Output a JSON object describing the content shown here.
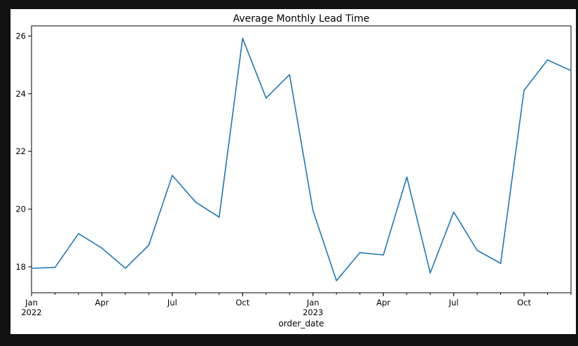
{
  "chart_data": {
    "type": "line",
    "title": "Average Monthly Lead Time",
    "xlabel": "order_date",
    "ylabel": "",
    "x": [
      "2022-01",
      "2022-02",
      "2022-03",
      "2022-04",
      "2022-05",
      "2022-06",
      "2022-07",
      "2022-08",
      "2022-09",
      "2022-10",
      "2022-11",
      "2022-12",
      "2023-01",
      "2023-02",
      "2023-03",
      "2023-04",
      "2023-05",
      "2023-06",
      "2023-07",
      "2023-08",
      "2023-09",
      "2023-10",
      "2023-11",
      "2023-12"
    ],
    "series": [
      {
        "values": [
          17.95,
          17.98,
          19.15,
          18.65,
          17.95,
          18.75,
          21.17,
          20.24,
          19.72,
          25.92,
          23.85,
          24.66,
          19.95,
          17.52,
          18.49,
          18.41,
          21.11,
          17.79,
          19.9,
          18.57,
          18.12,
          24.12,
          25.17,
          24.8
        ]
      }
    ],
    "ylim": [
      17.1,
      26.35
    ],
    "yticks": [
      18,
      20,
      22,
      24,
      26
    ],
    "xticks": [
      {
        "x": "2022-01",
        "label": "Jan",
        "sublabel": "2022"
      },
      {
        "x": "2022-04",
        "label": "Apr",
        "sublabel": ""
      },
      {
        "x": "2022-07",
        "label": "Jul",
        "sublabel": ""
      },
      {
        "x": "2022-10",
        "label": "Oct",
        "sublabel": ""
      },
      {
        "x": "2023-01",
        "label": "Jan",
        "sublabel": "2023"
      },
      {
        "x": "2023-04",
        "label": "Apr",
        "sublabel": ""
      },
      {
        "x": "2023-07",
        "label": "Jul",
        "sublabel": ""
      },
      {
        "x": "2023-10",
        "label": "Oct",
        "sublabel": ""
      }
    ],
    "line_color": "#1f77b4",
    "grid": false,
    "legend": "none"
  }
}
